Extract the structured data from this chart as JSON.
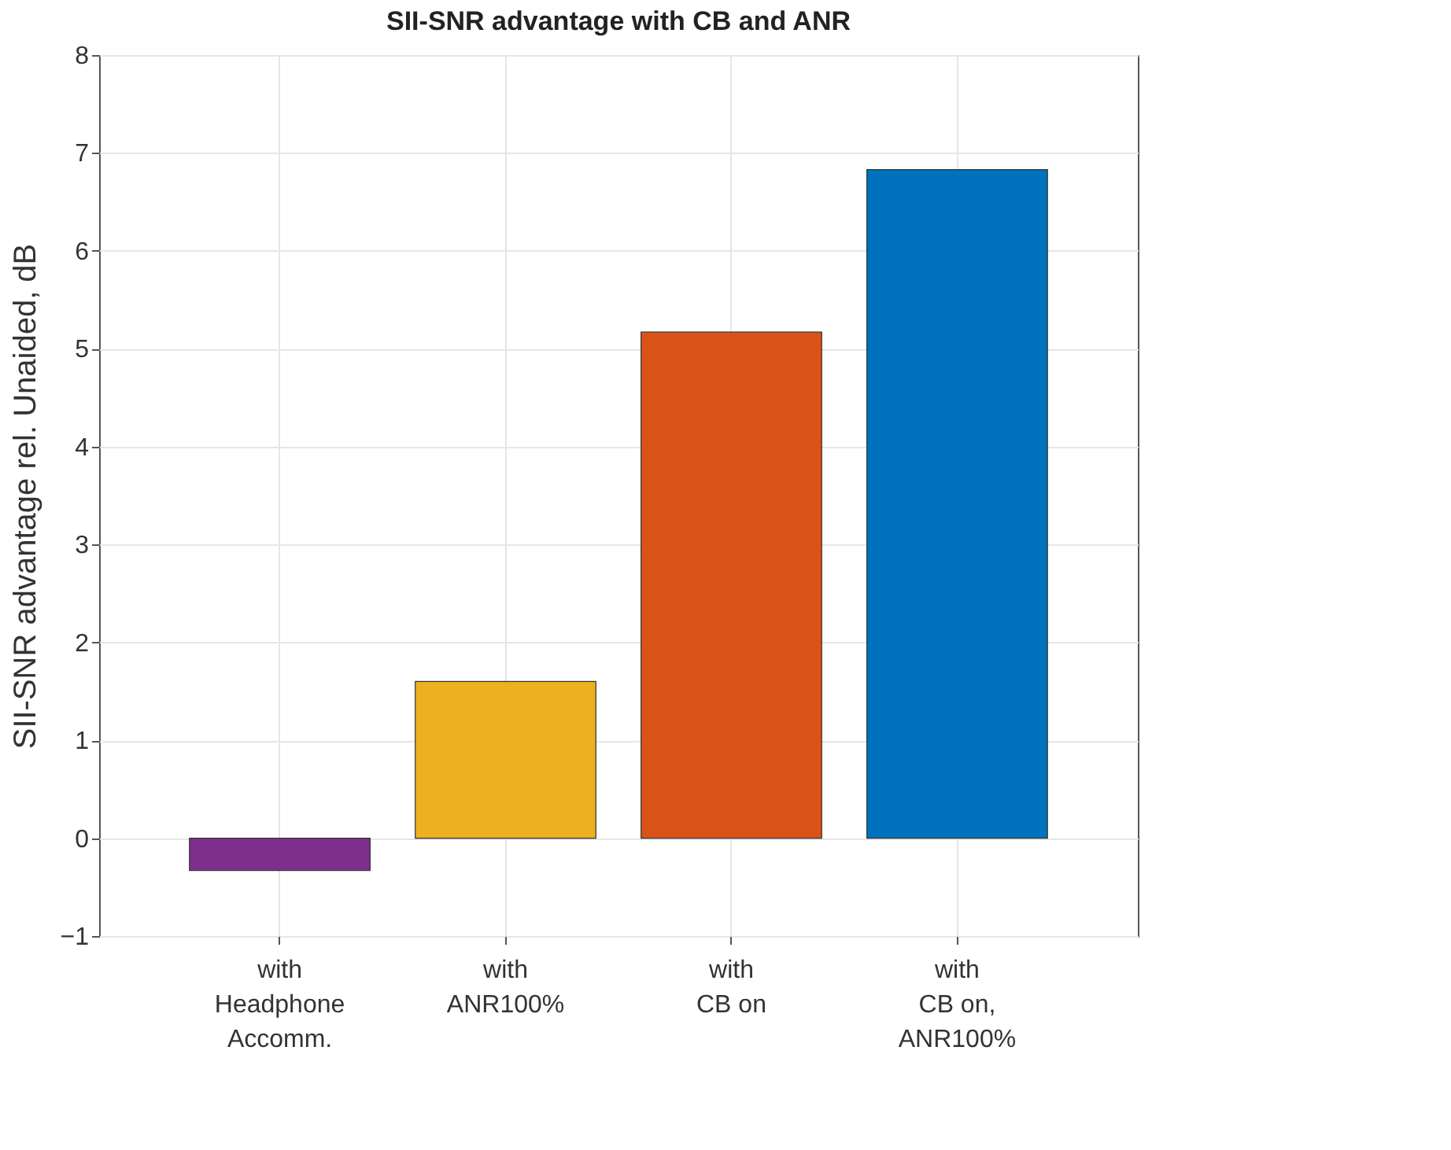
{
  "chart_data": {
    "type": "bar",
    "title": "SII-SNR advantage with CB and ANR",
    "ylabel": "SII-SNR advantage rel. Unaided, dB",
    "categories": [
      "with\nHeadphone\nAccomm.",
      "with\nANR100%",
      "with\nCB on",
      "with\nCB on,\nANR100%"
    ],
    "values": [
      -0.33,
      1.6,
      5.17,
      6.83
    ],
    "colors": [
      "#7e2f8e",
      "#edb120",
      "#d95319",
      "#0072bd"
    ],
    "ylim": [
      -1,
      8
    ],
    "yticks": [
      -1,
      0,
      1,
      2,
      3,
      4,
      5,
      6,
      7,
      8
    ],
    "grid": true
  }
}
